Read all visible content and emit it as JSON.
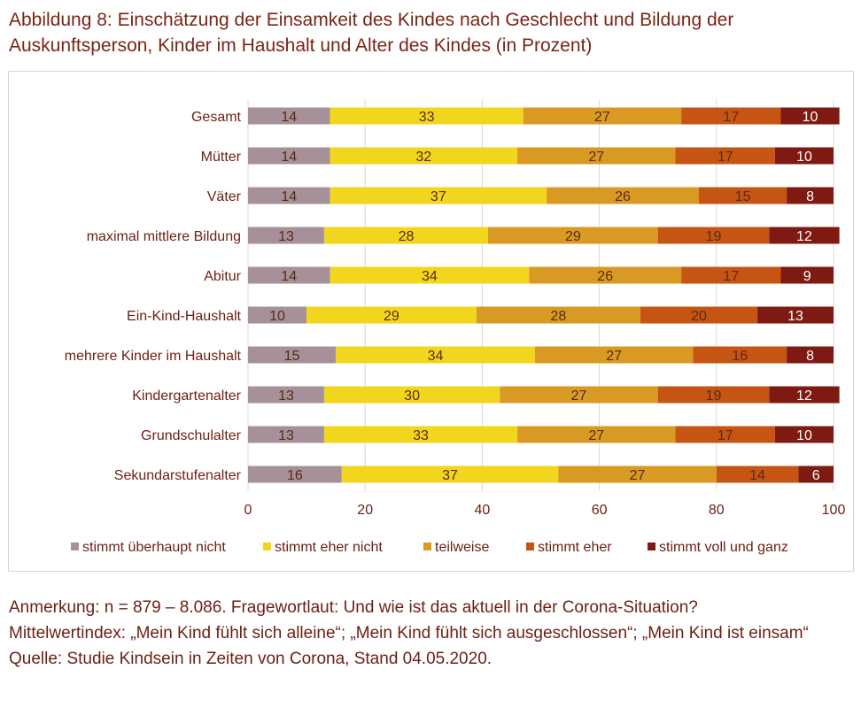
{
  "title": "Abbildung 8: Einschätzung der Einsamkeit des Kindes nach Geschlecht und Bildung der Auskunftsperson, Kinder im Haushalt und Alter des Kindes (in Prozent)",
  "notes": {
    "line1": "Anmerkung: n = 879 – 8.086. Fragewortlaut: Und wie ist das aktuell in der Corona-Situation?",
    "line2": "Mittelwertindex: „Mein Kind fühlt sich alleine“; „Mein Kind fühlt sich ausgeschlossen“; „Mein Kind ist einsam“",
    "line3": "Quelle: Studie Kindsein in Zeiten von Corona, Stand 04.05.2020."
  },
  "chart_data": {
    "type": "bar",
    "orientation": "horizontal",
    "stacked": true,
    "categories": [
      "Gesamt",
      "Mütter",
      "Väter",
      "maximal mittlere Bildung",
      "Abitur",
      "Ein-Kind-Haushalt",
      "mehrere Kinder im Haushalt",
      "Kindergartenalter",
      "Grundschulalter",
      "Sekundarstufenalter"
    ],
    "series": [
      {
        "name": "stimmt überhaupt nicht",
        "color": "#a6919a",
        "values": [
          14,
          14,
          14,
          13,
          14,
          10,
          15,
          13,
          13,
          16
        ]
      },
      {
        "name": "stimmt eher nicht",
        "color": "#f2d61e",
        "values": [
          33,
          32,
          37,
          28,
          34,
          29,
          34,
          30,
          33,
          37
        ]
      },
      {
        "name": "teilweise",
        "color": "#d89a22",
        "values": [
          27,
          27,
          26,
          29,
          26,
          28,
          27,
          27,
          27,
          27
        ]
      },
      {
        "name": "stimmt eher",
        "color": "#c65413",
        "values": [
          17,
          17,
          15,
          19,
          17,
          20,
          16,
          19,
          17,
          14
        ]
      },
      {
        "name": "stimmt voll und ganz",
        "color": "#7e1a12",
        "values": [
          10,
          10,
          8,
          12,
          9,
          13,
          8,
          12,
          10,
          6
        ]
      }
    ],
    "xticks": [
      0,
      20,
      40,
      60,
      80,
      100
    ],
    "xlim": [
      0,
      100
    ],
    "grid": true,
    "legend_position": "bottom",
    "label_colors": {
      "dark_text": "#5a2a12",
      "light_text": "#ffffff"
    }
  }
}
